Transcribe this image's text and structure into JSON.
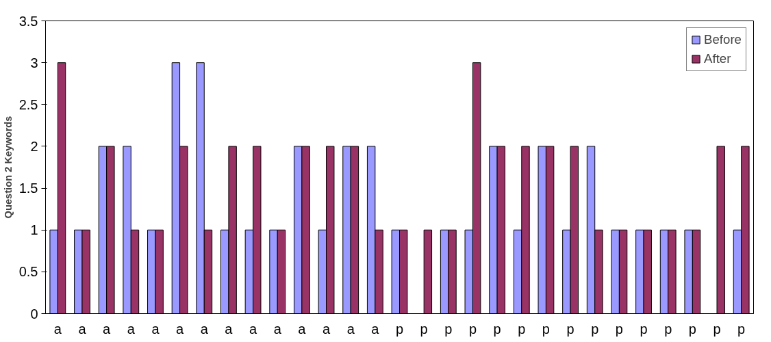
{
  "chart_data": {
    "type": "bar",
    "ylabel": "Question 2 Keywords",
    "categories": [
      "a",
      "a",
      "a",
      "a",
      "a",
      "a",
      "a",
      "a",
      "a",
      "a",
      "a",
      "a",
      "a",
      "a",
      "p",
      "p",
      "p",
      "p",
      "p",
      "p",
      "p",
      "p",
      "p",
      "p",
      "p",
      "p",
      "p",
      "p",
      "p"
    ],
    "series": [
      {
        "name": "Before",
        "color": "#9999ff",
        "values": [
          1,
          1,
          2,
          2,
          1,
          3,
          3,
          1,
          1,
          1,
          2,
          1,
          2,
          2,
          1,
          null,
          1,
          1,
          2,
          1,
          2,
          1,
          2,
          1,
          1,
          1,
          1,
          null,
          1
        ]
      },
      {
        "name": "After",
        "color": "#993366",
        "values": [
          3,
          1,
          2,
          1,
          1,
          2,
          1,
          2,
          2,
          1,
          2,
          2,
          2,
          1,
          1,
          1,
          1,
          3,
          2,
          2,
          2,
          2,
          1,
          1,
          1,
          1,
          1,
          2,
          2
        ]
      }
    ],
    "ylim": [
      0,
      3.5
    ],
    "yticks": [
      0,
      0.5,
      1,
      1.5,
      2,
      2.5,
      3,
      3.5
    ],
    "grid": false,
    "legend": "top right"
  }
}
